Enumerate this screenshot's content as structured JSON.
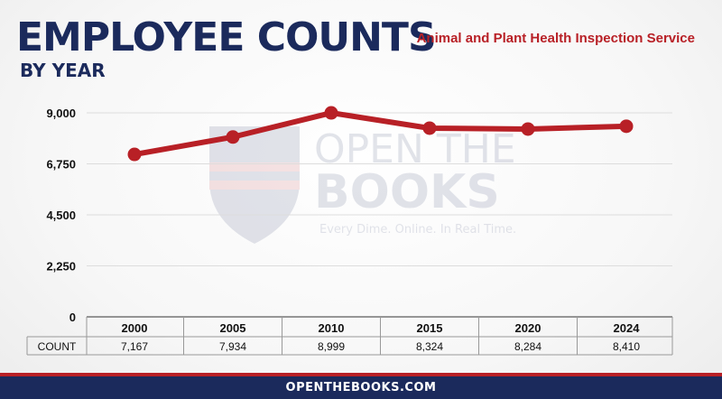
{
  "header": {
    "title": "EMPLOYEE COUNTS",
    "subtitle": "BY YEAR",
    "agency": "Animal and Plant Health Inspection Service"
  },
  "watermark": {
    "line1": "OPEN THE",
    "line2": "BOOKS",
    "tagline": "Every Dime. Online. In Real Time."
  },
  "footer": {
    "text": "OPENTHEBOOKS.COM"
  },
  "colors": {
    "line": "#b82026",
    "navy": "#1b2a5c",
    "grid": "#dddddd"
  },
  "chart_data": {
    "type": "line",
    "row_label": "COUNT",
    "categories": [
      "2000",
      "2005",
      "2010",
      "2015",
      "2020",
      "2024"
    ],
    "values": [
      7167,
      7934,
      8999,
      8324,
      8284,
      8410
    ],
    "value_labels": [
      "7,167",
      "7,934",
      "8,999",
      "8,324",
      "8,284",
      "8,410"
    ],
    "y_ticks": [
      0,
      2250,
      4500,
      6750,
      9000
    ],
    "y_tick_labels": [
      "0",
      "2,250",
      "4,500",
      "6,750",
      "9,000"
    ],
    "ylim": [
      0,
      9000
    ],
    "grid": true
  }
}
